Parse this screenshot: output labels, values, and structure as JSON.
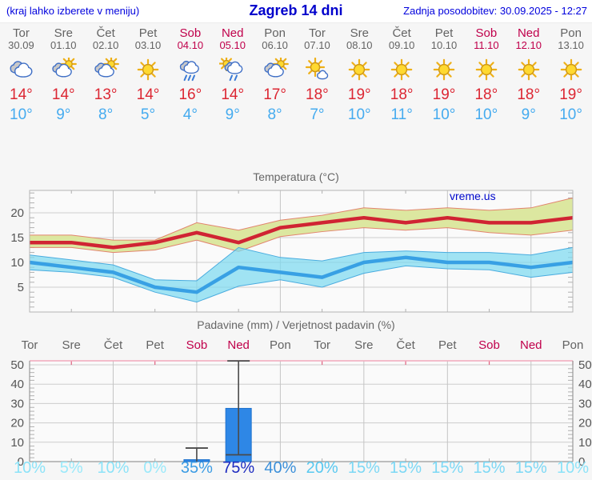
{
  "header": {
    "left_note": "(kraj lahko izberete v meniju)",
    "title": "Zagreb 14 dni",
    "updated": "Zadnja posodobitev: 30.09.2025 - 12:27"
  },
  "colors": {
    "brand_blue": "#0000cc",
    "weekday_text": "#636363",
    "weekend_text": "#c0004b",
    "high_temp": "#dc2733",
    "low_temp": "#45abef",
    "bar_blue": "#2e87e6",
    "grid": "#cdcdcd",
    "axis_text": "#555555"
  },
  "days": [
    {
      "name": "Tor",
      "date": "30.09",
      "weekend": false,
      "icon": "cloudy",
      "high": 14,
      "low": 10
    },
    {
      "name": "Sre",
      "date": "01.10",
      "weekend": false,
      "icon": "partly-sunny",
      "high": 14,
      "low": 9
    },
    {
      "name": "Čet",
      "date": "02.10",
      "weekend": false,
      "icon": "partly-sunny",
      "high": 13,
      "low": 8
    },
    {
      "name": "Pet",
      "date": "03.10",
      "weekend": false,
      "icon": "sunny",
      "high": 14,
      "low": 5
    },
    {
      "name": "Sob",
      "date": "04.10",
      "weekend": true,
      "icon": "rain",
      "high": 16,
      "low": 4
    },
    {
      "name": "Ned",
      "date": "05.10",
      "weekend": true,
      "icon": "sun-rain",
      "high": 14,
      "low": 9
    },
    {
      "name": "Pon",
      "date": "06.10",
      "weekend": false,
      "icon": "partly-sunny",
      "high": 17,
      "low": 8
    },
    {
      "name": "Tor",
      "date": "07.10",
      "weekend": false,
      "icon": "mostly-sunny",
      "high": 18,
      "low": 7
    },
    {
      "name": "Sre",
      "date": "08.10",
      "weekend": false,
      "icon": "sunny",
      "high": 19,
      "low": 10
    },
    {
      "name": "Čet",
      "date": "09.10",
      "weekend": false,
      "icon": "sunny",
      "high": 18,
      "low": 11
    },
    {
      "name": "Pet",
      "date": "10.10",
      "weekend": false,
      "icon": "sunny",
      "high": 19,
      "low": 10
    },
    {
      "name": "Sob",
      "date": "11.10",
      "weekend": true,
      "icon": "sunny",
      "high": 18,
      "low": 10
    },
    {
      "name": "Ned",
      "date": "12.10",
      "weekend": true,
      "icon": "sunny",
      "high": 18,
      "low": 9
    },
    {
      "name": "Pon",
      "date": "13.10",
      "weekend": false,
      "icon": "sunny",
      "high": 19,
      "low": 10
    }
  ],
  "chart_data": [
    {
      "type": "line",
      "title": "Temperatura (°C)",
      "watermark": "vreme.us",
      "x_labels": [
        "Tor",
        "Sre",
        "Čet",
        "Pet",
        "Sob",
        "Ned",
        "Pon",
        "Tor",
        "Sre",
        "Čet",
        "Pet",
        "Sob",
        "Ned",
        "Pon"
      ],
      "ylim": [
        0,
        24.5
      ],
      "yticks": [
        5,
        10,
        15,
        20
      ],
      "grid": true,
      "series": [
        {
          "name": "max-temperature",
          "color": "#d02433",
          "values": [
            14,
            14,
            13,
            14,
            16,
            14,
            17,
            18,
            19,
            18,
            19,
            18,
            18,
            19
          ],
          "band_upper": [
            15.5,
            15.5,
            14.5,
            14.5,
            18,
            16.5,
            18.5,
            19.5,
            21,
            20.5,
            21,
            20.5,
            21,
            23
          ],
          "band_lower": [
            13,
            13,
            12,
            12.5,
            14.5,
            12.2,
            15.2,
            16.2,
            17,
            16.5,
            17,
            16,
            15.5,
            16.5
          ],
          "band_fill": "#dce7a0",
          "band_edge": "#e2846e"
        },
        {
          "name": "min-temperature",
          "color": "#38a0e4",
          "values": [
            10,
            9,
            8,
            5,
            4,
            9,
            8,
            7,
            10,
            11,
            10,
            10,
            9,
            10
          ],
          "band_upper": [
            11.5,
            10.5,
            9.5,
            6.5,
            6.3,
            13,
            11,
            10.3,
            12,
            12.3,
            12,
            12,
            11.5,
            13
          ],
          "band_lower": [
            8.5,
            8,
            7,
            4,
            2,
            5.2,
            6.5,
            5,
            7.8,
            9.3,
            8.7,
            8.5,
            7,
            8
          ],
          "band_fill": "rgba(125,217,240,0.72)",
          "band_edge": "#49acdf"
        }
      ]
    },
    {
      "type": "bar",
      "title": "Padavine (mm) / Verjetnost padavin (%)",
      "categories": [
        "Tor",
        "Sre",
        "Čet",
        "Pet",
        "Sob",
        "Ned",
        "Pon",
        "Tor",
        "Sre",
        "Čet",
        "Pet",
        "Sob",
        "Ned",
        "Pon"
      ],
      "values": [
        0,
        0,
        0,
        0,
        1,
        27.5,
        0,
        0,
        0,
        0,
        0,
        0,
        0,
        0
      ],
      "whisker_low": [
        null,
        null,
        null,
        null,
        0,
        3.5,
        null,
        null,
        null,
        null,
        null,
        null,
        null,
        null
      ],
      "whisker_high": [
        null,
        null,
        null,
        null,
        7,
        52,
        null,
        null,
        null,
        null,
        null,
        null,
        null,
        null
      ],
      "probabilities": [
        "10%",
        "5%",
        "10%",
        "0%",
        "35%",
        "75%",
        "40%",
        "20%",
        "15%",
        "15%",
        "15%",
        "15%",
        "15%",
        "10%"
      ],
      "prob_colors": [
        "#8ce3f8",
        "#9ae9fa",
        "#8ce3f8",
        "#9ae9fa",
        "#3c9ce4",
        "#1e2cc0",
        "#3c90da",
        "#58c8f0",
        "#7cd8f5",
        "#7cd8f5",
        "#7cd8f5",
        "#7cd8f5",
        "#7cd8f5",
        "#8ce3f8"
      ],
      "ylim": [
        0,
        52
      ],
      "yticks": [
        0,
        10,
        20,
        30,
        40,
        50
      ],
      "grid": true
    }
  ]
}
